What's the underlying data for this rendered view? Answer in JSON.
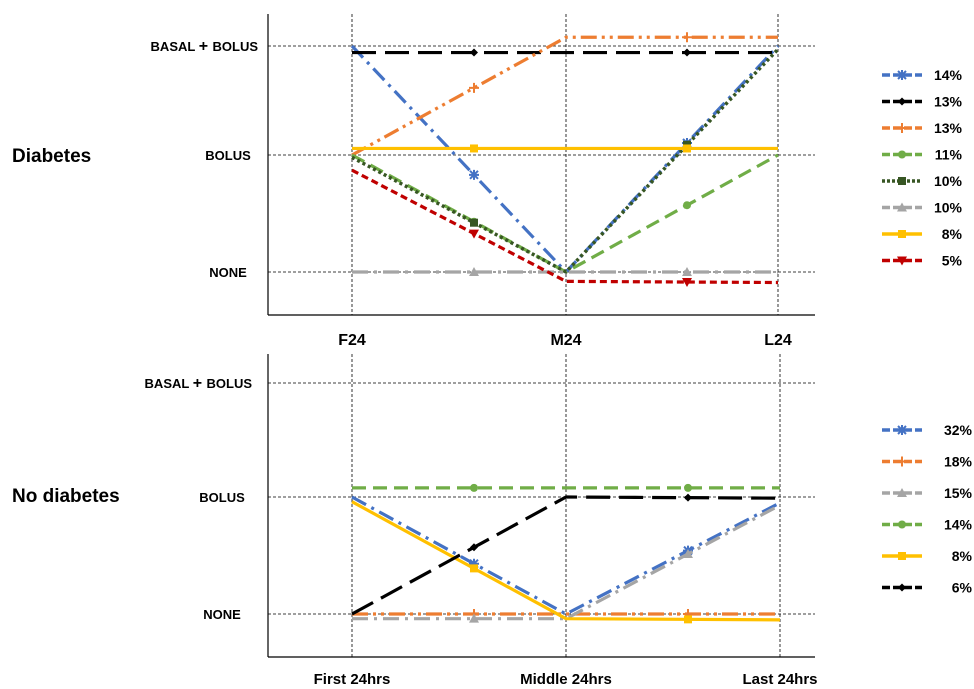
{
  "chart_data": [
    {
      "type": "line",
      "panel_label": "Diabetes",
      "y_levels": [
        "NONE",
        "BOLUS",
        "BASAL + BOLUS"
      ],
      "categories": [
        "F24",
        "M24",
        "L24"
      ],
      "series": [
        {
          "name": "14%",
          "values": [
            2,
            0,
            2
          ],
          "color": "#4472C4",
          "dash": "dashdot",
          "marker": "star"
        },
        {
          "name": "13%",
          "values": [
            1.94,
            1.94,
            1.94
          ],
          "color": "#000000",
          "dash": "longdash",
          "marker": "diamond"
        },
        {
          "name": "13%",
          "values": [
            1,
            2.08,
            2.08
          ],
          "color": "#ED7D31",
          "dash": "dashdotdot",
          "marker": "cross"
        },
        {
          "name": "11%",
          "values": [
            1,
            0,
            1
          ],
          "color": "#70AD47",
          "dash": "dash",
          "marker": "circle"
        },
        {
          "name": "10%",
          "values": [
            0.98,
            0,
            1.97
          ],
          "color": "#375623",
          "dash": "dot",
          "marker": "square"
        },
        {
          "name": "10%",
          "values": [
            0,
            0,
            0
          ],
          "color": "#A5A5A5",
          "dash": "dashdot",
          "marker": "triangle"
        },
        {
          "name": "8%",
          "values": [
            1.06,
            1.06,
            1.06
          ],
          "color": "#FFC000",
          "dash": "solid",
          "marker": "square"
        },
        {
          "name": "5%",
          "values": [
            0.87,
            -0.08,
            -0.09
          ],
          "color": "#C00000",
          "dash": "shortdash",
          "marker": "triangle-down"
        }
      ]
    },
    {
      "type": "line",
      "panel_label": "No diabetes",
      "y_levels": [
        "NONE",
        "BOLUS",
        "BASAL + BOLUS"
      ],
      "categories": [
        "First 24hrs",
        "Middle 24hrs",
        "Last 24hrs"
      ],
      "series": [
        {
          "name": "32%",
          "values": [
            1,
            0,
            0.95
          ],
          "color": "#4472C4",
          "dash": "dashdot",
          "marker": "star"
        },
        {
          "name": "18%",
          "values": [
            0,
            0,
            0
          ],
          "color": "#ED7D31",
          "dash": "dashdotdot",
          "marker": "cross"
        },
        {
          "name": "15%",
          "values": [
            -0.04,
            -0.04,
            0.93
          ],
          "color": "#A5A5A5",
          "dash": "dashdot",
          "marker": "triangle"
        },
        {
          "name": "14%",
          "values": [
            1.08,
            1.08,
            1.08
          ],
          "color": "#70AD47",
          "dash": "dash",
          "marker": "circle"
        },
        {
          "name": "8%",
          "values": [
            0.96,
            -0.04,
            -0.05
          ],
          "color": "#FFC000",
          "dash": "solid",
          "marker": "square"
        },
        {
          "name": "6%",
          "values": [
            0,
            1,
            0.99
          ],
          "color": "#000000",
          "dash": "longdash",
          "marker": "diamond"
        }
      ]
    }
  ]
}
